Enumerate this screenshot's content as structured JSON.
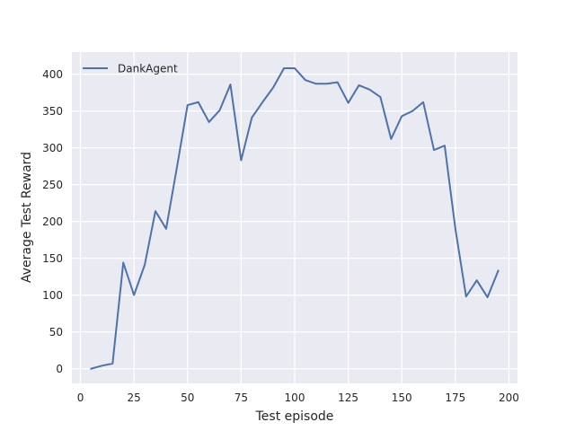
{
  "chart_data": {
    "type": "line",
    "title": "",
    "xlabel": "Test episode",
    "ylabel": "Average Test Reward",
    "xlim": [
      -4,
      204
    ],
    "ylim": [
      -20,
      430
    ],
    "xticks": [
      0,
      25,
      50,
      75,
      100,
      125,
      150,
      175,
      200
    ],
    "yticks": [
      0,
      50,
      100,
      150,
      200,
      250,
      300,
      350,
      400
    ],
    "grid": true,
    "legend_position": "top-left",
    "background_color": "#eaeaf2",
    "grid_color": "#ffffff",
    "series": [
      {
        "name": "DankAgent",
        "color": "#4c72b0",
        "x": [
          5,
          10,
          15,
          20,
          25,
          30,
          35,
          40,
          45,
          50,
          55,
          60,
          65,
          70,
          75,
          80,
          85,
          90,
          95,
          100,
          105,
          110,
          115,
          120,
          125,
          130,
          135,
          140,
          145,
          150,
          155,
          160,
          165,
          170,
          175,
          180,
          185,
          190,
          195
        ],
        "y": [
          0,
          4,
          7,
          144,
          100,
          141,
          214,
          190,
          273,
          358,
          362,
          335,
          351,
          386,
          283,
          341,
          362,
          382,
          408,
          408,
          392,
          387,
          387,
          389,
          361,
          385,
          379,
          369,
          312,
          343,
          350,
          362,
          297,
          303,
          190,
          98,
          120,
          97,
          133
        ]
      }
    ]
  }
}
